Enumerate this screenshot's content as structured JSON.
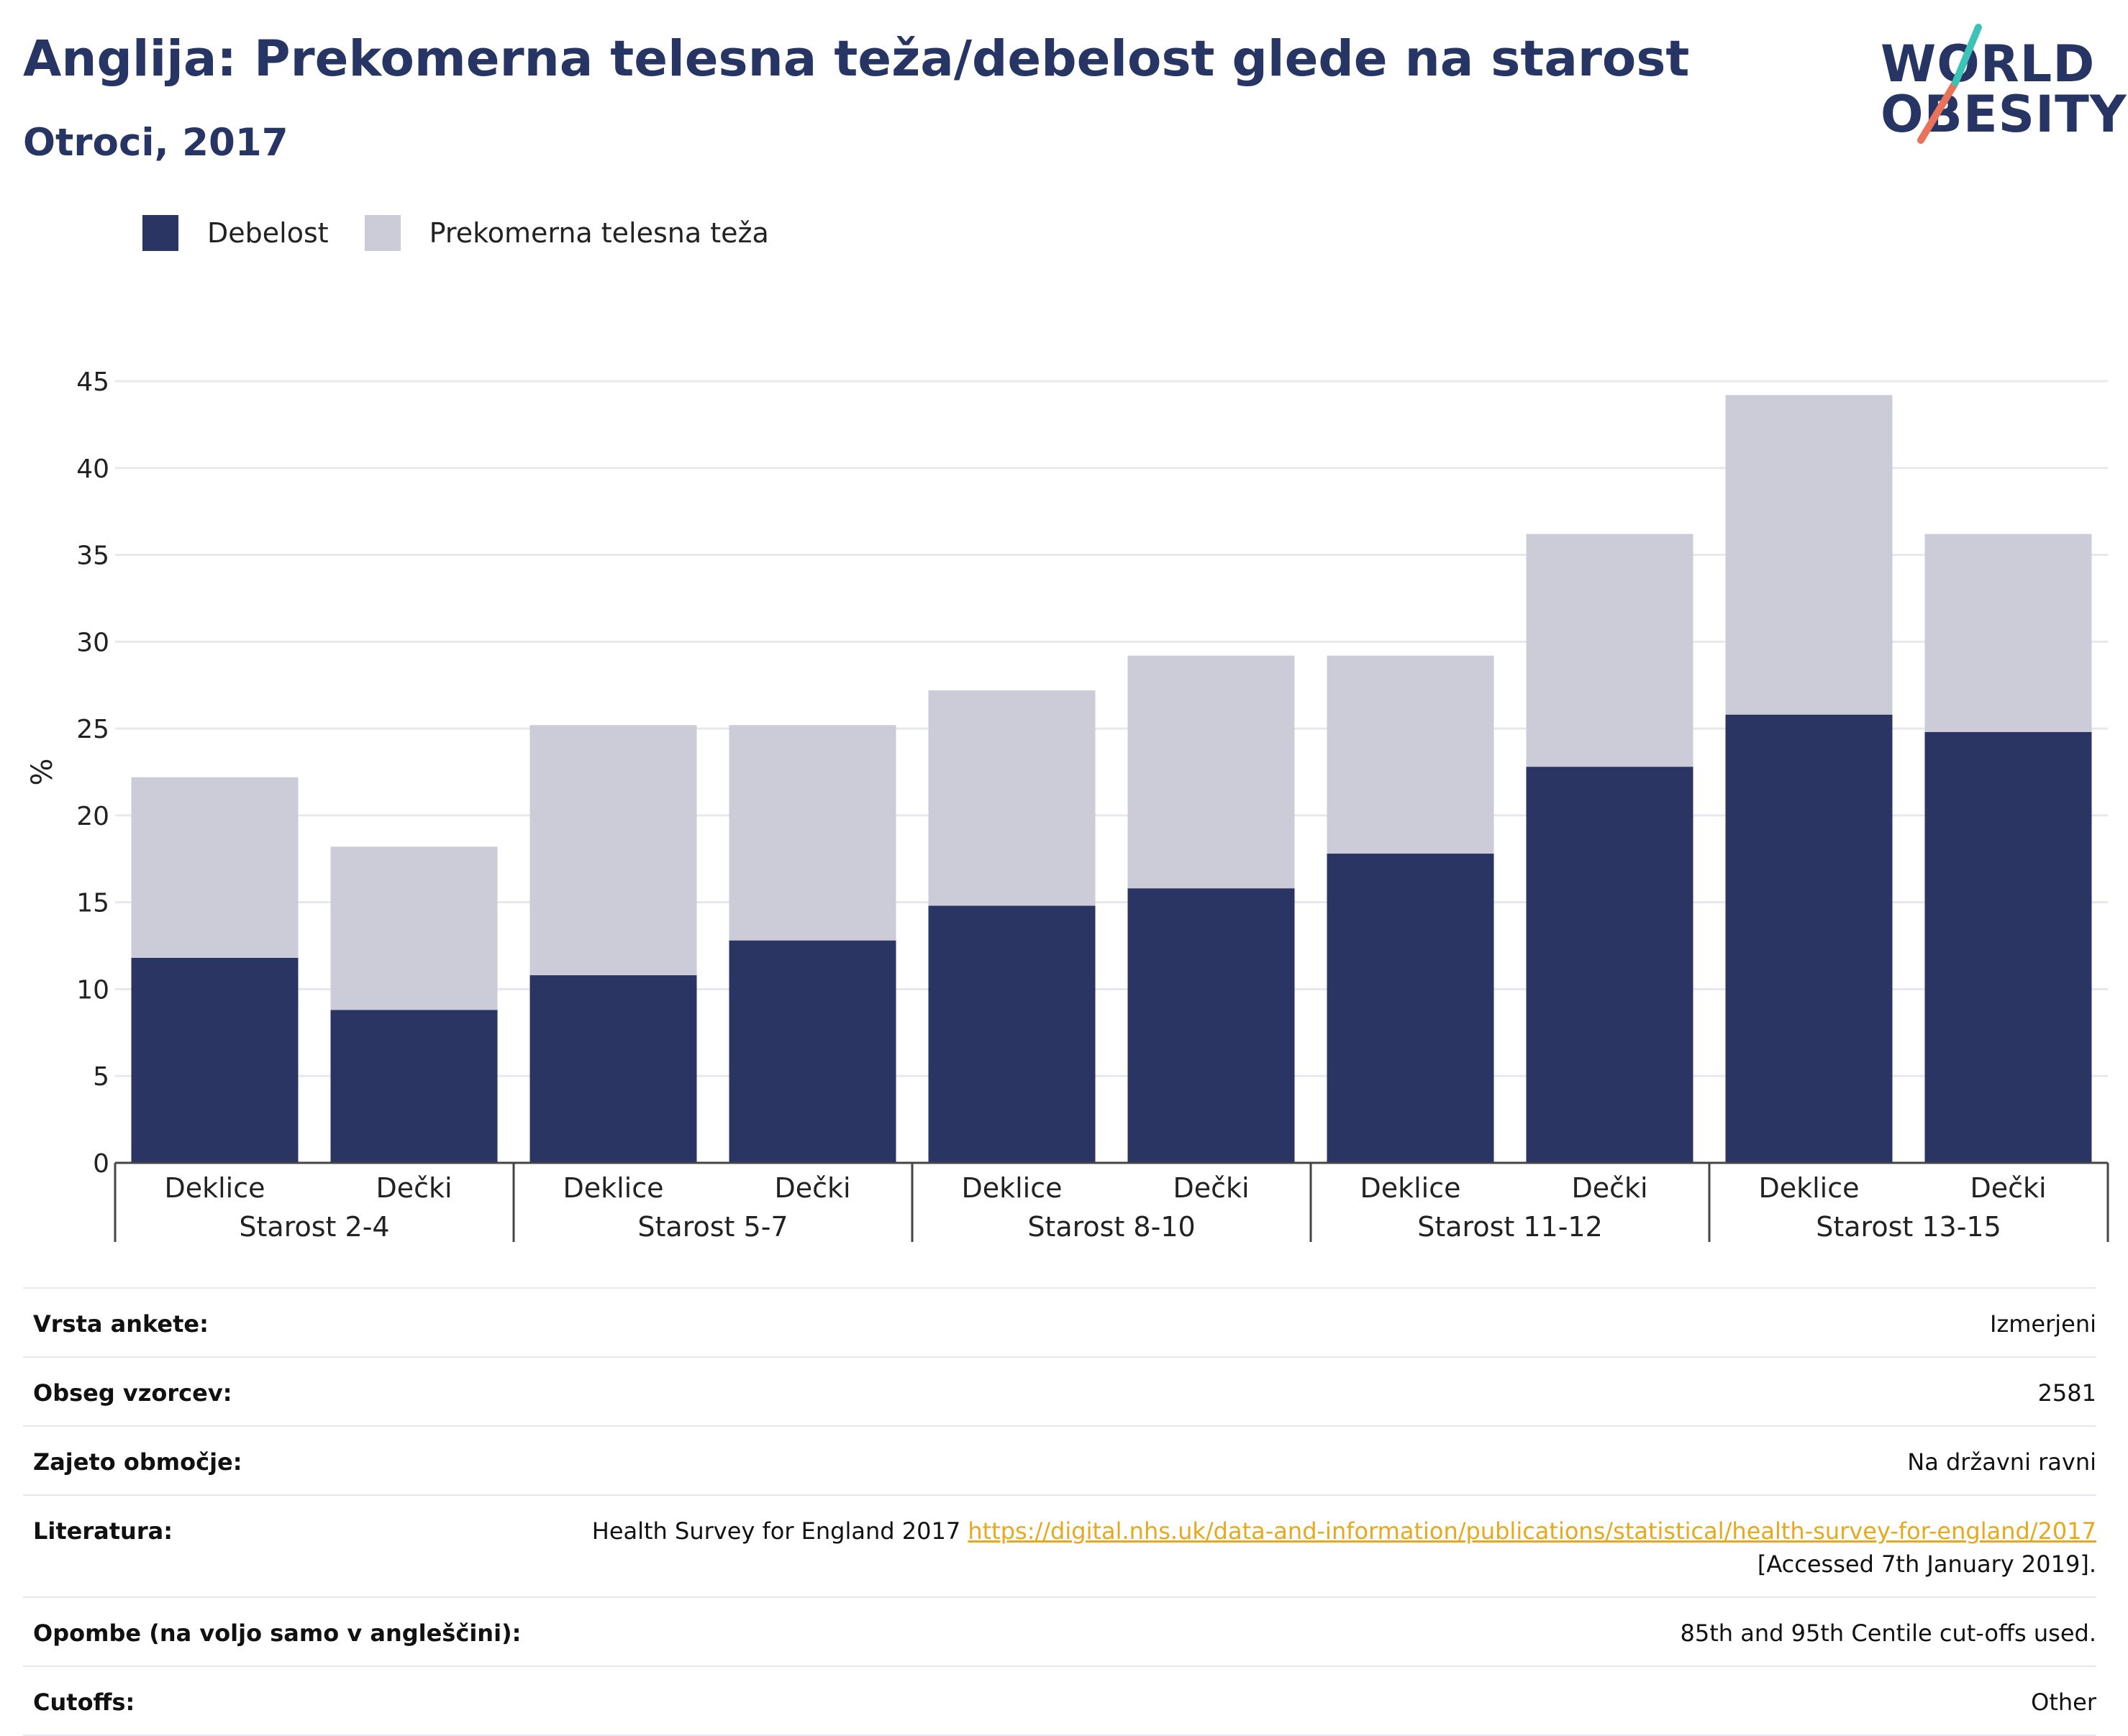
{
  "header": {
    "title": "Anglija: Prekomerna telesna teža/debelost glede na starost",
    "subtitle": "Otroci, 2017"
  },
  "logo": {
    "line1": "WORLD",
    "line2": "OBESITY"
  },
  "legend": {
    "obesity": "Debelost",
    "overweight": "Prekomerna telesna teža"
  },
  "colors": {
    "obesity": "#2a3563",
    "overweight": "#cbccd7",
    "link": "#e8a81c",
    "grid": "#e6e8ee"
  },
  "chart_data": {
    "type": "bar",
    "stacked": true,
    "ylabel": "%",
    "ylim": [
      0,
      45
    ],
    "yticks": [
      0,
      5,
      10,
      15,
      20,
      25,
      30,
      35,
      40,
      45
    ],
    "groups": [
      "Starost 2-4",
      "Starost 5-7",
      "Starost 8-10",
      "Starost 11-12",
      "Starost 13-15"
    ],
    "categories": [
      "Deklice",
      "Dečki",
      "Deklice",
      "Dečki",
      "Deklice",
      "Dečki",
      "Deklice",
      "Dečki",
      "Deklice",
      "Dečki"
    ],
    "series": [
      {
        "name": "Debelost",
        "values": [
          11.8,
          8.8,
          10.8,
          12.8,
          14.8,
          15.8,
          17.8,
          22.8,
          25.8,
          24.8
        ]
      },
      {
        "name": "Prekomerna telesna teža",
        "values": [
          10.4,
          9.4,
          14.4,
          12.4,
          12.4,
          13.4,
          11.4,
          13.4,
          18.4,
          11.4
        ]
      }
    ],
    "grid": true,
    "legend_position": "top-left"
  },
  "info": {
    "rows": [
      {
        "label": "Vrsta ankete:",
        "value": "Izmerjeni"
      },
      {
        "label": "Obseg vzorcev:",
        "value": "2581"
      },
      {
        "label": "Zajeto območje:",
        "value": "Na državni ravni"
      },
      {
        "label": "Literatura:",
        "value": "Health Survey for England 2017",
        "link": "https://digital.nhs.uk/data-and-information/publications/statistical/health-survey-for-england/2017",
        "suffix": "[Accessed 7th January 2019]."
      },
      {
        "label": "Opombe (na voljo samo v angleščini):",
        "value": "85th and 95th Centile cut-offs used."
      },
      {
        "label": "Cutoffs:",
        "value": "Other"
      }
    ]
  }
}
